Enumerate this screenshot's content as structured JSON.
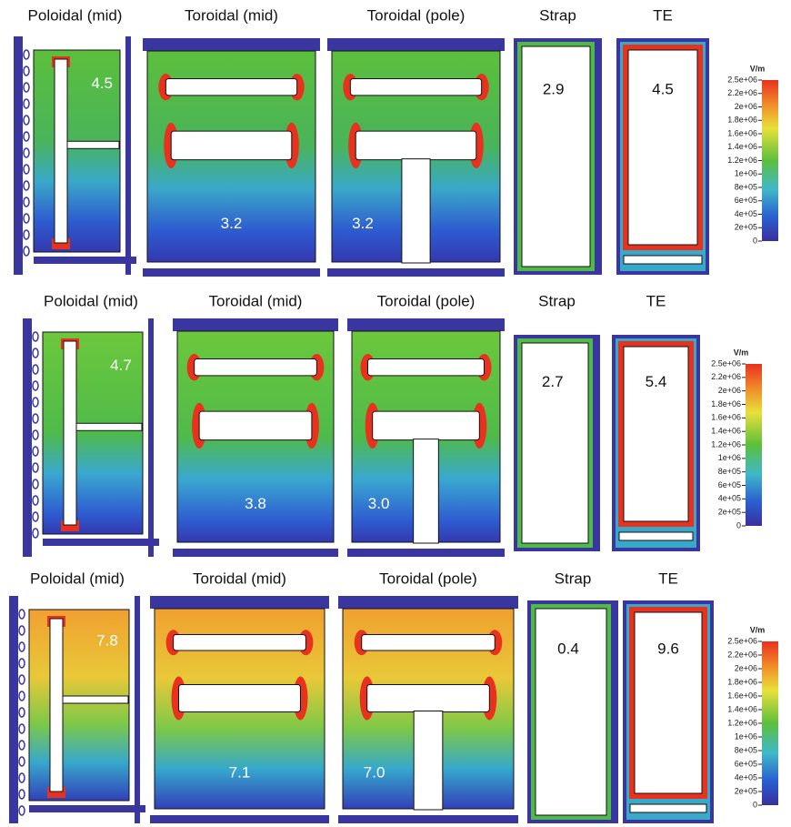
{
  "rows": [
    {
      "panels": [
        {
          "title": "Poloidal (mid)",
          "value": "4.5"
        },
        {
          "title": "Toroidal (mid)",
          "value": "3.2"
        },
        {
          "title": "Toroidal (pole)",
          "value": "3.2"
        },
        {
          "title": "Strap",
          "value": "2.9"
        },
        {
          "title": "TE",
          "value": "4.5"
        }
      ],
      "colorbar": {
        "unit": "V/m",
        "ticks": [
          "2.5e+06",
          "2.2e+06",
          "2e+06",
          "1.8e+06",
          "1.6e+06",
          "1.4e+06",
          "1.2e+06",
          "1e+06",
          "8e+05",
          "6e+05",
          "4e+05",
          "2e+05",
          "0"
        ]
      }
    },
    {
      "panels": [
        {
          "title": "Poloidal (mid)",
          "value": "4.7"
        },
        {
          "title": "Toroidal (mid)",
          "value": "3.8"
        },
        {
          "title": "Toroidal (pole)",
          "value": "3.0"
        },
        {
          "title": "Strap",
          "value": "2.7"
        },
        {
          "title": "TE",
          "value": "5.4"
        }
      ],
      "colorbar": {
        "unit": "V/m",
        "ticks": [
          "2.5e+06",
          "2.2e+06",
          "2e+06",
          "1.8e+06",
          "1.6e+06",
          "1.4e+06",
          "1.2e+06",
          "1e+06",
          "8e+05",
          "6e+05",
          "4e+05",
          "2e+05",
          "0"
        ]
      }
    },
    {
      "panels": [
        {
          "title": "Poloidal (mid)",
          "value": "7.8"
        },
        {
          "title": "Toroidal (mid)",
          "value": "7.1"
        },
        {
          "title": "Toroidal (pole)",
          "value": "7.0"
        },
        {
          "title": "Strap",
          "value": "0.4"
        },
        {
          "title": "TE",
          "value": "9.6"
        }
      ],
      "colorbar": {
        "unit": "V/m",
        "ticks": [
          "2.5e+06",
          "2.2e+06",
          "2e+06",
          "1.8e+06",
          "1.6e+06",
          "1.4e+06",
          "1.2e+06",
          "1e+06",
          "8e+05",
          "6e+05",
          "4e+05",
          "2e+05",
          "0"
        ]
      }
    }
  ]
}
